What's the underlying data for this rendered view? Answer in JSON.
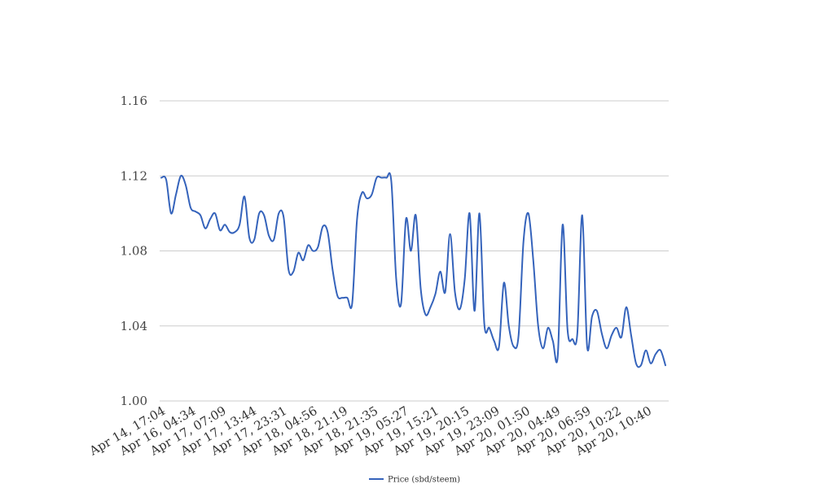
{
  "chart_data": {
    "type": "line",
    "title": "",
    "xlabel": "",
    "ylabel": "",
    "ylim": [
      1.0,
      1.16
    ],
    "yticks": [
      "1.00",
      "1.04",
      "1.08",
      "1.12",
      "1.16"
    ],
    "grid": true,
    "legend_position": "bottom",
    "color": "#3563bb",
    "xticks": [
      "Apr 14, 17:04",
      "Apr 16, 04:34",
      "Apr 17, 07:09",
      "Apr 17, 13:44",
      "Apr 17, 23:31",
      "Apr 18, 04:56",
      "Apr 18, 21:19",
      "Apr 18, 21:35",
      "Apr 19, 05:27",
      "Apr 19, 15:21",
      "Apr 19, 20:15",
      "Apr 19, 23:09",
      "Apr 20, 01:50",
      "Apr 20, 04:49",
      "Apr 20, 06:59",
      "Apr 20, 10:22",
      "Apr 20, 10:40"
    ],
    "series": [
      {
        "name": "Price (sbd/steem)",
        "values": [
          1.119,
          1.118,
          1.1,
          1.11,
          1.12,
          1.115,
          1.103,
          1.101,
          1.099,
          1.092,
          1.097,
          1.1,
          1.091,
          1.094,
          1.09,
          1.09,
          1.094,
          1.109,
          1.087,
          1.086,
          1.1,
          1.099,
          1.088,
          1.086,
          1.1,
          1.098,
          1.07,
          1.069,
          1.079,
          1.075,
          1.083,
          1.08,
          1.082,
          1.093,
          1.09,
          1.07,
          1.056,
          1.055,
          1.055,
          1.052,
          1.097,
          1.111,
          1.108,
          1.11,
          1.119,
          1.119,
          1.119,
          1.117,
          1.065,
          1.052,
          1.097,
          1.08,
          1.099,
          1.06,
          1.046,
          1.05,
          1.057,
          1.069,
          1.058,
          1.089,
          1.058,
          1.049,
          1.065,
          1.1,
          1.048,
          1.1,
          1.041,
          1.039,
          1.032,
          1.029,
          1.063,
          1.04,
          1.029,
          1.035,
          1.085,
          1.1,
          1.075,
          1.04,
          1.028,
          1.039,
          1.032,
          1.024,
          1.094,
          1.038,
          1.033,
          1.036,
          1.099,
          1.029,
          1.045,
          1.048,
          1.036,
          1.028,
          1.035,
          1.039,
          1.034,
          1.05,
          1.035,
          1.02,
          1.019,
          1.027,
          1.02,
          1.025,
          1.027,
          1.019
        ]
      }
    ]
  }
}
